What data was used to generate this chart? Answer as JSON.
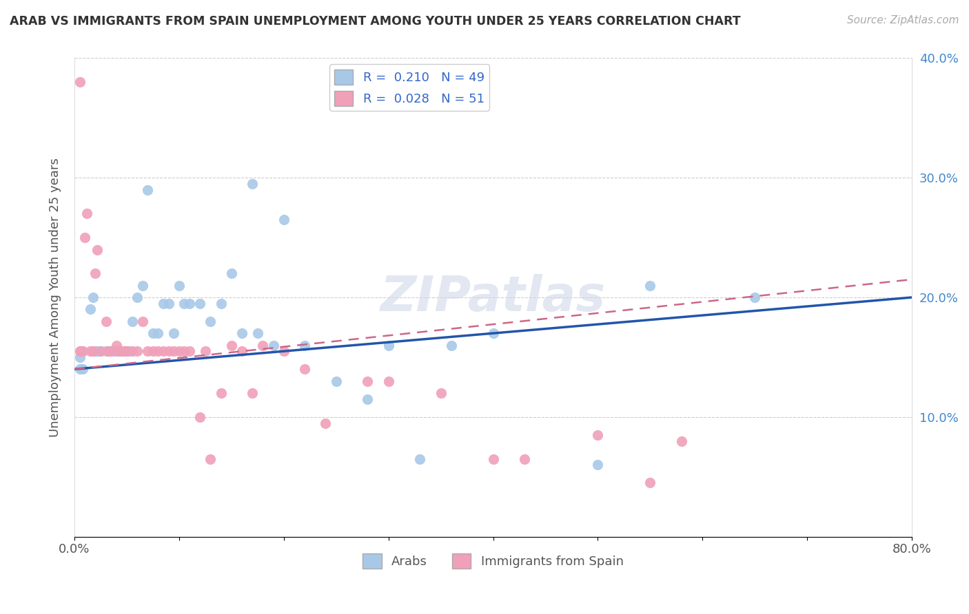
{
  "title": "ARAB VS IMMIGRANTS FROM SPAIN UNEMPLOYMENT AMONG YOUTH UNDER 25 YEARS CORRELATION CHART",
  "source": "Source: ZipAtlas.com",
  "ylabel": "Unemployment Among Youth under 25 years",
  "xlim": [
    0.0,
    0.8
  ],
  "ylim": [
    0.0,
    0.4
  ],
  "arab_color": "#a8c8e8",
  "spain_color": "#f0a0b8",
  "arab_line_color": "#2255aa",
  "spain_line_color": "#cc6688",
  "arab_R": 0.21,
  "arab_N": 49,
  "spain_R": 0.028,
  "spain_N": 51,
  "watermark": "ZIPatlas",
  "arab_x": [
    0.005,
    0.005,
    0.008,
    0.015,
    0.018,
    0.02,
    0.022,
    0.025,
    0.03,
    0.032,
    0.035,
    0.038,
    0.04,
    0.042,
    0.045,
    0.048,
    0.05,
    0.052,
    0.055,
    0.06,
    0.065,
    0.07,
    0.075,
    0.08,
    0.085,
    0.09,
    0.095,
    0.1,
    0.105,
    0.11,
    0.12,
    0.13,
    0.14,
    0.15,
    0.16,
    0.17,
    0.175,
    0.19,
    0.2,
    0.22,
    0.25,
    0.28,
    0.3,
    0.33,
    0.36,
    0.4,
    0.5,
    0.55,
    0.65
  ],
  "arab_y": [
    0.14,
    0.15,
    0.14,
    0.19,
    0.2,
    0.155,
    0.155,
    0.155,
    0.155,
    0.155,
    0.155,
    0.155,
    0.155,
    0.155,
    0.155,
    0.155,
    0.155,
    0.155,
    0.18,
    0.2,
    0.21,
    0.29,
    0.17,
    0.17,
    0.195,
    0.195,
    0.17,
    0.21,
    0.195,
    0.195,
    0.195,
    0.18,
    0.195,
    0.22,
    0.17,
    0.295,
    0.17,
    0.16,
    0.265,
    0.16,
    0.13,
    0.115,
    0.16,
    0.065,
    0.16,
    0.17,
    0.06,
    0.21,
    0.2
  ],
  "spain_x": [
    0.005,
    0.005,
    0.006,
    0.007,
    0.008,
    0.01,
    0.012,
    0.015,
    0.018,
    0.02,
    0.022,
    0.025,
    0.03,
    0.032,
    0.035,
    0.04,
    0.042,
    0.045,
    0.048,
    0.05,
    0.055,
    0.06,
    0.065,
    0.07,
    0.075,
    0.08,
    0.085,
    0.09,
    0.095,
    0.1,
    0.105,
    0.11,
    0.12,
    0.125,
    0.13,
    0.14,
    0.15,
    0.16,
    0.17,
    0.18,
    0.2,
    0.22,
    0.24,
    0.28,
    0.3,
    0.35,
    0.4,
    0.43,
    0.5,
    0.55,
    0.58
  ],
  "spain_y": [
    0.38,
    0.155,
    0.155,
    0.155,
    0.155,
    0.25,
    0.27,
    0.155,
    0.155,
    0.22,
    0.24,
    0.155,
    0.18,
    0.155,
    0.155,
    0.16,
    0.155,
    0.155,
    0.155,
    0.155,
    0.155,
    0.155,
    0.18,
    0.155,
    0.155,
    0.155,
    0.155,
    0.155,
    0.155,
    0.155,
    0.155,
    0.155,
    0.1,
    0.155,
    0.065,
    0.12,
    0.16,
    0.155,
    0.12,
    0.16,
    0.155,
    0.14,
    0.095,
    0.13,
    0.13,
    0.12,
    0.065,
    0.065,
    0.085,
    0.045,
    0.08
  ]
}
